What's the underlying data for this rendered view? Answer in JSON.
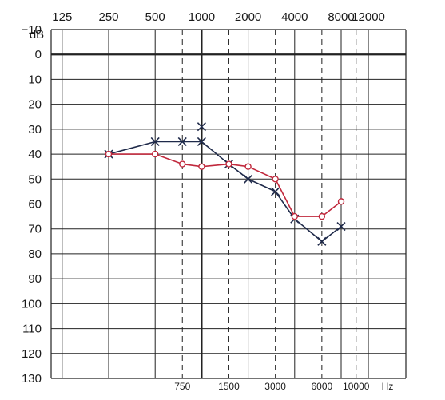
{
  "chart_data": {
    "type": "line",
    "title": "",
    "y_unit_label": "dB",
    "x_unit_label": "Hz",
    "x_scale": "log",
    "ylim": [
      -10,
      130
    ],
    "y_inverted": true,
    "grid": true,
    "y_ticks": [
      -10,
      0,
      10,
      20,
      30,
      40,
      50,
      60,
      70,
      80,
      90,
      100,
      110,
      120,
      130
    ],
    "y_tick_labels": [
      "−10",
      "0",
      "10",
      "20",
      "30",
      "40",
      "50",
      "60",
      "70",
      "80",
      "90",
      "100",
      "110",
      "120",
      "130"
    ],
    "x_major_ticks": [
      125,
      250,
      500,
      1000,
      2000,
      4000,
      8000,
      12000
    ],
    "x_major_tick_labels": [
      "125",
      "250",
      "500",
      "1000",
      "2000",
      "4000",
      "8000",
      "12000"
    ],
    "x_minor_ticks": [
      750,
      1500,
      3000,
      6000,
      10000
    ],
    "x_minor_tick_labels": [
      "750",
      "1500",
      "3000",
      "6000",
      "10000"
    ],
    "series": [
      {
        "marker": "x",
        "color": "#1f2a4a",
        "points": [
          {
            "x": 250,
            "y": 40
          },
          {
            "x": 500,
            "y": 35
          },
          {
            "x": 750,
            "y": 35
          },
          {
            "x": 1000,
            "y": 35
          },
          {
            "x": 1500,
            "y": 44
          },
          {
            "x": 2000,
            "y": 50
          },
          {
            "x": 3000,
            "y": 55
          },
          {
            "x": 4000,
            "y": 66
          },
          {
            "x": 6000,
            "y": 75
          },
          {
            "x": 8000,
            "y": 69
          }
        ],
        "extra_points": [
          {
            "x": 1000,
            "y": 29
          }
        ]
      },
      {
        "marker": "o",
        "color": "#c0283c",
        "points": [
          {
            "x": 250,
            "y": 40
          },
          {
            "x": 500,
            "y": 40
          },
          {
            "x": 750,
            "y": 44
          },
          {
            "x": 1000,
            "y": 45
          },
          {
            "x": 1500,
            "y": 44
          },
          {
            "x": 2000,
            "y": 45
          },
          {
            "x": 3000,
            "y": 50
          },
          {
            "x": 4000,
            "y": 65
          },
          {
            "x": 6000,
            "y": 65
          },
          {
            "x": 8000,
            "y": 59
          }
        ]
      }
    ]
  }
}
